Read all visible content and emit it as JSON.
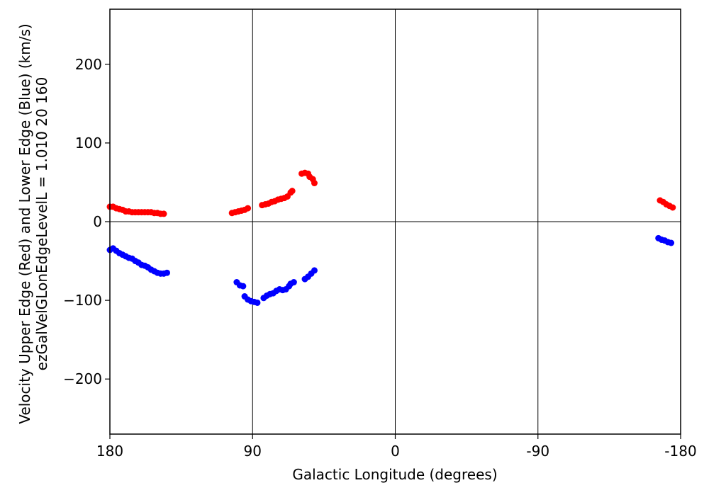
{
  "chart_data": {
    "type": "scatter",
    "xlabel": "Galactic Longitude (degrees)",
    "ylabel_line1": "Velocity Upper Edge (Red) and Lower Edge (Blue)  (km/s)",
    "ylabel_line2": "ezGalVelGLonEdgeLevelL = 1.010  20  160",
    "xlim": [
      180,
      -180
    ],
    "ylim": [
      -270,
      270
    ],
    "x_ticks": [
      {
        "value": 180,
        "label": "180"
      },
      {
        "value": 90,
        "label": "90"
      },
      {
        "value": 0,
        "label": "0"
      },
      {
        "value": -90,
        "label": "-90"
      },
      {
        "value": -180,
        "label": "-180"
      }
    ],
    "y_ticks": [
      {
        "value": 200,
        "label": "200"
      },
      {
        "value": 100,
        "label": "100"
      },
      {
        "value": 0,
        "label": "0"
      },
      {
        "value": -100,
        "label": "−100"
      },
      {
        "value": -200,
        "label": "−200"
      }
    ],
    "vertical_lines": [
      90,
      0,
      -90
    ],
    "horizontal_lines": [
      0
    ],
    "series": [
      {
        "color": "#ff0000",
        "points": [
          [
            180,
            19
          ],
          [
            178,
            19
          ],
          [
            176,
            17
          ],
          [
            174,
            16
          ],
          [
            172,
            15
          ],
          [
            170,
            13
          ],
          [
            168,
            13
          ],
          [
            166,
            12
          ],
          [
            164,
            12
          ],
          [
            162,
            12
          ],
          [
            160,
            12
          ],
          [
            158,
            12
          ],
          [
            156,
            12
          ],
          [
            154,
            12
          ],
          [
            152,
            11
          ],
          [
            150,
            11
          ],
          [
            148,
            10
          ],
          [
            146,
            10
          ],
          [
            103,
            11
          ],
          [
            101,
            12
          ],
          [
            99,
            13
          ],
          [
            97,
            14
          ],
          [
            95,
            15
          ],
          [
            93,
            17
          ],
          [
            84,
            21
          ],
          [
            82,
            22
          ],
          [
            80,
            23
          ],
          [
            78,
            25
          ],
          [
            76,
            26
          ],
          [
            74,
            28
          ],
          [
            72,
            29
          ],
          [
            70,
            30
          ],
          [
            68,
            32
          ],
          [
            66,
            37
          ],
          [
            65,
            39
          ],
          [
            59,
            61
          ],
          [
            57,
            62
          ],
          [
            55,
            61
          ],
          [
            54,
            57
          ],
          [
            52,
            54
          ],
          [
            51,
            49
          ],
          [
            -167,
            27
          ],
          [
            -169,
            25
          ],
          [
            -171,
            22
          ],
          [
            -173,
            20
          ],
          [
            -175,
            18
          ]
        ]
      },
      {
        "color": "#0000ff",
        "points": [
          [
            180,
            -36
          ],
          [
            178,
            -34
          ],
          [
            176,
            -37
          ],
          [
            174,
            -40
          ],
          [
            172,
            -42
          ],
          [
            170,
            -44
          ],
          [
            168,
            -46
          ],
          [
            166,
            -47
          ],
          [
            164,
            -50
          ],
          [
            162,
            -52
          ],
          [
            160,
            -55
          ],
          [
            158,
            -56
          ],
          [
            156,
            -58
          ],
          [
            154,
            -61
          ],
          [
            152,
            -63
          ],
          [
            150,
            -65
          ],
          [
            148,
            -66
          ],
          [
            146,
            -66
          ],
          [
            144,
            -65
          ],
          [
            100,
            -77
          ],
          [
            98,
            -81
          ],
          [
            96,
            -82
          ],
          [
            95,
            -95
          ],
          [
            93,
            -99
          ],
          [
            91,
            -101
          ],
          [
            89,
            -102
          ],
          [
            87,
            -103
          ],
          [
            83,
            -97
          ],
          [
            81,
            -94
          ],
          [
            79,
            -92
          ],
          [
            77,
            -91
          ],
          [
            75,
            -88
          ],
          [
            73,
            -86
          ],
          [
            71,
            -87
          ],
          [
            69,
            -86
          ],
          [
            67,
            -82
          ],
          [
            66,
            -79
          ],
          [
            64,
            -77
          ],
          [
            57,
            -73
          ],
          [
            55,
            -70
          ],
          [
            53,
            -66
          ],
          [
            51,
            -62
          ],
          [
            -166,
            -21
          ],
          [
            -168,
            -23
          ],
          [
            -170,
            -24
          ],
          [
            -172,
            -26
          ],
          [
            -174,
            -27
          ]
        ]
      }
    ]
  }
}
